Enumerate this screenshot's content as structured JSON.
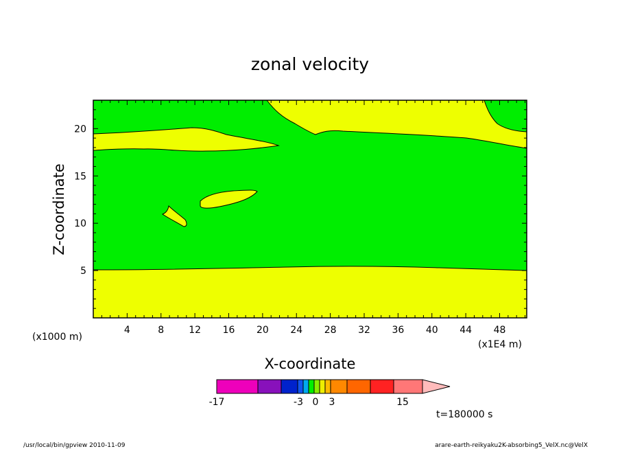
{
  "chart_data": {
    "type": "contour",
    "title": "zonal velocity",
    "xlabel": "X-coordinate",
    "ylabel": "Z-coordinate",
    "x_unit_note": "(x1000 m)",
    "x_scale_note": "(x1E4 m)",
    "xlim": [
      0,
      51.2
    ],
    "ylim": [
      0,
      23
    ],
    "x_ticks": [
      4,
      8,
      12,
      16,
      20,
      24,
      28,
      32,
      36,
      40,
      44,
      48
    ],
    "y_ticks": [
      5,
      10,
      15,
      20
    ],
    "fill_colors": {
      "positive": "#eeff00",
      "near_zero": "#00ee00"
    },
    "colorbar": {
      "labels": [
        "-17",
        "-3",
        "0",
        "3",
        "15"
      ],
      "colors": [
        "#ee00bb",
        "#8811bb",
        "#0022cc",
        "#1155ee",
        "#00aaee",
        "#00ee00",
        "#88ee00",
        "#eeee00",
        "#ffbb00",
        "#ff8800",
        "#ff6600",
        "#ff2222",
        "#ff7777",
        "#ffbbbb"
      ]
    },
    "time_label": "t=180000 s"
  },
  "footer": {
    "left": "/usr/local/bin/gpview   2010-11-09",
    "right": "arare-earth-reikyaku2K-absorbing5_VelX.nc@VelX"
  }
}
